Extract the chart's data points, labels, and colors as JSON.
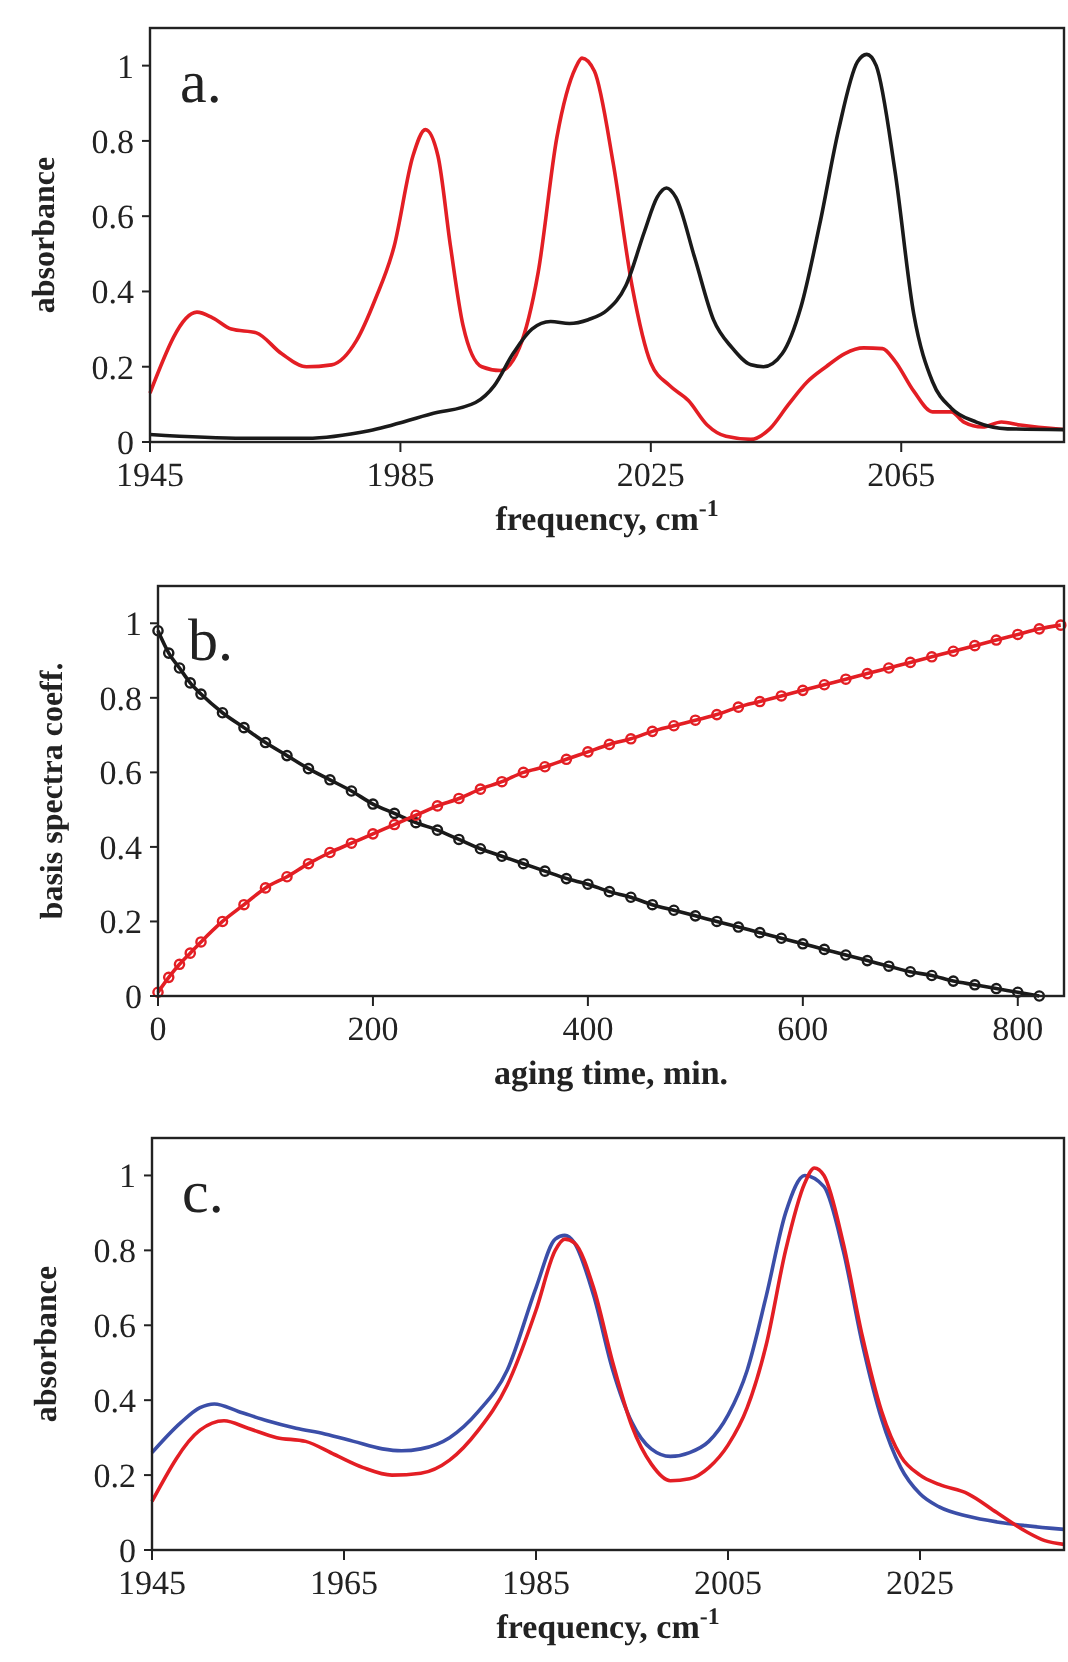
{
  "chart_data": [
    {
      "type": "line",
      "xlabel": "frequency, cm$^{-1}$",
      "ylabel": "absorbance",
      "annotations": [
        "a."
      ],
      "xlim": [
        1945,
        2091
      ],
      "xticks": [
        1945,
        1985,
        2025,
        2065
      ],
      "ylim": [
        0,
        1.1
      ],
      "yticks": [
        0,
        0.2,
        0.4,
        0.6,
        0.8,
        1
      ],
      "grid": false,
      "series": [
        {
          "color": "#e31e24",
          "x": [
            1945,
            1952.5,
            1955,
            1958,
            1962,
            1966,
            1970,
            1974,
            1978,
            1981,
            1984,
            1987,
            1989,
            1991,
            1993,
            1995,
            1998,
            2001,
            2004,
            2007,
            2010,
            2013,
            2014,
            2016,
            2019,
            2022,
            2025,
            2028,
            2031,
            2034,
            2037,
            2041,
            2044,
            2047,
            2050,
            2053,
            2056,
            2059,
            2062,
            2064,
            2067,
            2070,
            2073,
            2075,
            2078,
            2081,
            2084,
            2091
          ],
          "values": [
            0.13,
            0.345,
            0.33,
            0.3,
            0.29,
            0.235,
            0.2,
            0.205,
            0.27,
            0.38,
            0.52,
            0.76,
            0.83,
            0.76,
            0.52,
            0.31,
            0.2,
            0.19,
            0.25,
            0.45,
            0.81,
            0.995,
            1.02,
            0.985,
            0.74,
            0.415,
            0.21,
            0.15,
            0.11,
            0.045,
            0.015,
            0.007,
            0.035,
            0.1,
            0.16,
            0.2,
            0.235,
            0.25,
            0.248,
            0.215,
            0.135,
            0.08,
            0.08,
            0.053,
            0.04,
            0.053,
            0.045,
            0.033
          ]
        },
        {
          "color": "#1a1a1a",
          "x": [
            1945,
            1960,
            1970,
            1980,
            1990,
            1997,
            2000,
            2003,
            2006,
            2009,
            2012,
            2015,
            2018,
            2021,
            2024,
            2026,
            2027.5,
            2029,
            2032,
            2035,
            2038,
            2041,
            2043,
            2046,
            2049,
            2052,
            2055,
            2058,
            2059.5,
            2061,
            2064,
            2067,
            2070,
            2073,
            2077,
            2082,
            2091
          ],
          "values": [
            0.02,
            0.01,
            0.01,
            0.03,
            0.075,
            0.105,
            0.15,
            0.235,
            0.3,
            0.32,
            0.315,
            0.325,
            0.35,
            0.415,
            0.56,
            0.65,
            0.675,
            0.65,
            0.49,
            0.325,
            0.25,
            0.205,
            0.2,
            0.235,
            0.36,
            0.58,
            0.83,
            1.01,
            1.03,
            1.0,
            0.72,
            0.34,
            0.16,
            0.09,
            0.053,
            0.035,
            0.033
          ]
        }
      ]
    },
    {
      "type": "line",
      "marker": "circle",
      "xlabel": "aging time, min.",
      "ylabel": "basis spectra coeff.",
      "annotations": [
        "b."
      ],
      "xlim": [
        0,
        843
      ],
      "xticks": [
        0,
        200,
        400,
        600,
        800
      ],
      "ylim": [
        0,
        1.1
      ],
      "yticks": [
        0,
        0.2,
        0.4,
        0.6,
        0.8,
        1
      ],
      "grid": false,
      "series": [
        {
          "color": "#1a1a1a",
          "x": [
            0,
            10,
            20,
            30,
            40,
            60,
            80,
            100,
            120,
            140,
            160,
            180,
            200,
            220,
            240,
            260,
            280,
            300,
            320,
            340,
            360,
            380,
            400,
            420,
            440,
            460,
            480,
            500,
            520,
            540,
            560,
            580,
            600,
            620,
            640,
            660,
            680,
            700,
            720,
            740,
            760,
            780,
            800,
            820
          ],
          "values": [
            0.98,
            0.92,
            0.88,
            0.84,
            0.81,
            0.76,
            0.72,
            0.68,
            0.645,
            0.61,
            0.58,
            0.55,
            0.515,
            0.49,
            0.465,
            0.445,
            0.42,
            0.395,
            0.375,
            0.355,
            0.335,
            0.315,
            0.3,
            0.28,
            0.265,
            0.245,
            0.23,
            0.215,
            0.2,
            0.185,
            0.17,
            0.155,
            0.14,
            0.125,
            0.11,
            0.095,
            0.08,
            0.065,
            0.055,
            0.04,
            0.03,
            0.02,
            0.01,
            0
          ]
        },
        {
          "color": "#e31e24",
          "x": [
            0,
            10,
            20,
            30,
            40,
            60,
            80,
            100,
            120,
            140,
            160,
            180,
            200,
            220,
            240,
            260,
            280,
            300,
            320,
            340,
            360,
            380,
            400,
            420,
            440,
            460,
            480,
            500,
            520,
            540,
            560,
            580,
            600,
            620,
            640,
            660,
            680,
            700,
            720,
            740,
            760,
            780,
            800,
            820,
            840
          ],
          "values": [
            0.01,
            0.05,
            0.085,
            0.115,
            0.145,
            0.2,
            0.245,
            0.29,
            0.32,
            0.355,
            0.385,
            0.41,
            0.435,
            0.46,
            0.485,
            0.51,
            0.53,
            0.555,
            0.575,
            0.6,
            0.615,
            0.635,
            0.655,
            0.675,
            0.69,
            0.71,
            0.725,
            0.74,
            0.755,
            0.775,
            0.79,
            0.805,
            0.82,
            0.835,
            0.85,
            0.865,
            0.88,
            0.895,
            0.91,
            0.925,
            0.94,
            0.955,
            0.97,
            0.985,
            0.995
          ]
        }
      ]
    },
    {
      "type": "line",
      "xlabel": "frequency, cm$^{-1}$",
      "ylabel": "absorbance",
      "annotations": [
        "c."
      ],
      "xlim": [
        1945,
        2040
      ],
      "xticks": [
        1945,
        1965,
        1985,
        2005,
        2025
      ],
      "ylim": [
        0,
        1.1
      ],
      "yticks": [
        0,
        0.2,
        0.4,
        0.6,
        0.8,
        1
      ],
      "grid": false,
      "series": [
        {
          "color": "#3b4ea8",
          "x": [
            1945,
            1948,
            1950,
            1951.5,
            1954,
            1957,
            1960,
            1963,
            1966,
            1969,
            1971,
            1973,
            1976,
            1979,
            1982,
            1985,
            1987,
            1988,
            1989,
            1991,
            1993,
            1995,
            1997,
            1999,
            2001,
            2003,
            2005,
            2007,
            2009,
            2011,
            2013,
            2015,
            2017,
            2019,
            2021,
            2023,
            2025,
            2027,
            2030,
            2033,
            2036,
            2040
          ],
          "values": [
            0.26,
            0.34,
            0.38,
            0.39,
            0.37,
            0.345,
            0.325,
            0.31,
            0.29,
            0.27,
            0.265,
            0.27,
            0.3,
            0.37,
            0.48,
            0.7,
            0.83,
            0.84,
            0.82,
            0.68,
            0.48,
            0.34,
            0.27,
            0.25,
            0.26,
            0.29,
            0.36,
            0.48,
            0.68,
            0.9,
            1.0,
            0.97,
            0.8,
            0.55,
            0.35,
            0.22,
            0.15,
            0.115,
            0.09,
            0.075,
            0.065,
            0.055
          ]
        },
        {
          "color": "#e31e24",
          "x": [
            1945,
            1950,
            1952.5,
            1955,
            1958,
            1961,
            1964,
            1967,
            1970,
            1973,
            1976,
            1979,
            1982,
            1985,
            1987,
            1988,
            1989,
            1991,
            1993,
            1995,
            1997,
            1999,
            2001,
            2003,
            2005,
            2007,
            2009,
            2011,
            2013,
            2014,
            2015,
            2017,
            2019,
            2021,
            2023,
            2025,
            2027,
            2030,
            2033,
            2036,
            2038,
            2040
          ],
          "values": [
            0.13,
            0.32,
            0.345,
            0.325,
            0.3,
            0.29,
            0.255,
            0.22,
            0.2,
            0.205,
            0.24,
            0.32,
            0.44,
            0.64,
            0.8,
            0.83,
            0.82,
            0.7,
            0.5,
            0.33,
            0.23,
            0.185,
            0.19,
            0.22,
            0.28,
            0.38,
            0.55,
            0.8,
            0.98,
            1.02,
            1.0,
            0.82,
            0.57,
            0.37,
            0.25,
            0.2,
            0.175,
            0.15,
            0.1,
            0.05,
            0.025,
            0.015
          ]
        }
      ]
    }
  ]
}
